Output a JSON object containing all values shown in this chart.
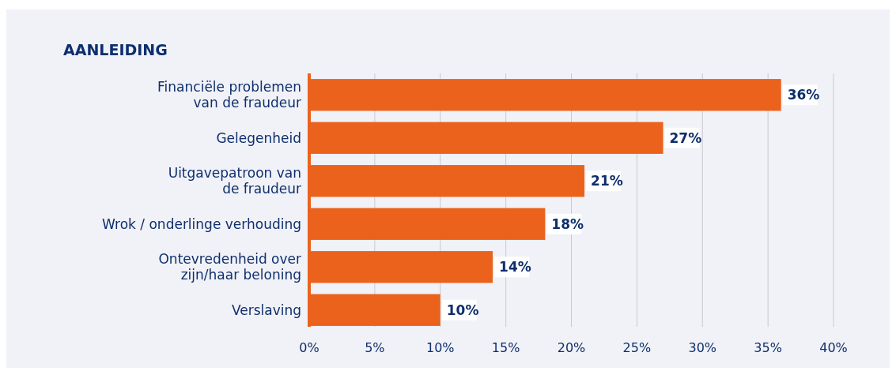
{
  "chart_data": {
    "type": "bar",
    "orientation": "horizontal",
    "title": "AANLEIDING",
    "categories": [
      "Financiële problemen\nvan de fraudeur",
      "Gelegenheid",
      "Uitgavepatroon van\nde fraudeur",
      "Wrok / onderlinge verhouding",
      "Ontevredenheid over\nzijn/haar beloning",
      "Verslaving"
    ],
    "values": [
      36,
      27,
      21,
      18,
      14,
      10
    ],
    "value_labels": [
      "36%",
      "27%",
      "21%",
      "18%",
      "14%",
      "10%"
    ],
    "color": "#ea621c",
    "xlim": [
      0,
      40
    ],
    "xticks": [
      {
        "value": 0,
        "label": "0%"
      },
      {
        "value": 5,
        "label": "5%"
      },
      {
        "value": 10,
        "label": "10%"
      },
      {
        "value": 15,
        "label": "15%"
      },
      {
        "value": 20,
        "label": "20%"
      },
      {
        "value": 25,
        "label": "25%"
      },
      {
        "value": 30,
        "label": "30%"
      },
      {
        "value": 35,
        "label": "35%"
      },
      {
        "value": 40,
        "label": "40%"
      }
    ],
    "grid": "x"
  }
}
